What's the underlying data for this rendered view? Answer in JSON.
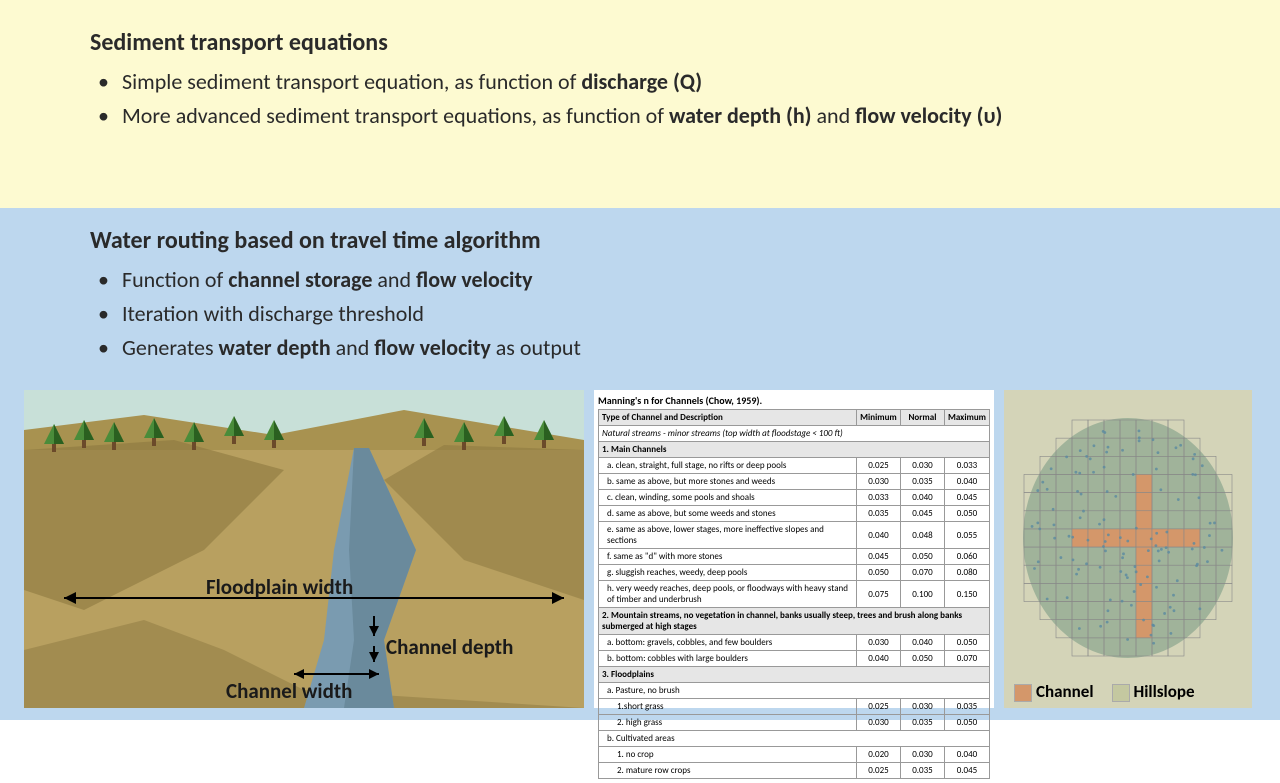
{
  "top": {
    "title": "Sediment transport equations",
    "bullets": [
      {
        "pre": "Simple sediment transport equation, as function of ",
        "bold1": "discharge (Q)",
        "post": ""
      },
      {
        "pre": "More advanced sediment transport equations, as function of ",
        "bold1": "water depth (h)",
        "mid": " and ",
        "bold2": "flow velocity (υ)"
      }
    ]
  },
  "bottom": {
    "title": "Water routing based on travel time algorithm",
    "bullets": [
      {
        "pre": "Function of ",
        "bold1": "channel storage",
        "mid": " and ",
        "bold2": "flow velocity"
      },
      {
        "pre": "Iteration with discharge threshold"
      },
      {
        "pre": "Generates ",
        "bold1": "water depth",
        "mid": " and ",
        "bold2": "flow velocity",
        "post": " as output"
      }
    ]
  },
  "panel1": {
    "label_floodplain": "Floodplain width",
    "label_channel_depth": "Channel depth",
    "label_channel_width": "Channel width",
    "colors": {
      "sky": "#c8e0d8",
      "ground_far": "#a89250",
      "ground": "#b8a060",
      "ground_dark": "#8c7840",
      "water": "#7a9bb0",
      "tree_green": "#4a8c3a",
      "tree_dark": "#2a6020"
    }
  },
  "panel2": {
    "title": "Manning's n for Channels (Chow, 1959).",
    "headers": [
      "Type of Channel and Description",
      "Minimum",
      "Normal",
      "Maximum"
    ],
    "natural_header": "Natural streams - minor streams (top width at floodstage < 100 ft)",
    "sections": [
      {
        "name": "1. Main Channels",
        "rows": [
          {
            "d": "a. clean, straight, full stage, no rifts or deep pools",
            "v": [
              0.025,
              0.03,
              0.033
            ]
          },
          {
            "d": "b. same as above, but more stones and weeds",
            "v": [
              0.03,
              0.035,
              0.04
            ]
          },
          {
            "d": "c. clean, winding, some pools and shoals",
            "v": [
              0.033,
              0.04,
              0.045
            ]
          },
          {
            "d": "d. same as above, but some weeds and stones",
            "v": [
              0.035,
              0.045,
              0.05
            ]
          },
          {
            "d": "e. same as above, lower stages, more ineffective slopes and sections",
            "v": [
              0.04,
              0.048,
              0.055
            ]
          },
          {
            "d": "f. same as \"d\" with more stones",
            "v": [
              0.045,
              0.05,
              0.06
            ]
          },
          {
            "d": "g. sluggish reaches, weedy, deep pools",
            "v": [
              0.05,
              0.07,
              0.08
            ]
          },
          {
            "d": "h. very weedy reaches, deep pools, or floodways with heavy stand of timber and underbrush",
            "v": [
              0.075,
              0.1,
              0.15
            ]
          }
        ]
      },
      {
        "name": "2. Mountain streams, no vegetation in channel, banks usually steep, trees and brush along banks submerged at high stages",
        "rows": [
          {
            "d": "a. bottom: gravels, cobbles, and few boulders",
            "v": [
              0.03,
              0.04,
              0.05
            ]
          },
          {
            "d": "b. bottom: cobbles with large boulders",
            "v": [
              0.04,
              0.05,
              0.07
            ]
          }
        ]
      },
      {
        "name": "3. Floodplains",
        "rows": [
          {
            "d": "a. Pasture, no brush",
            "v": null
          },
          {
            "d": "1.short grass",
            "v": [
              0.025,
              0.03,
              0.035
            ],
            "indent": true
          },
          {
            "d": "2. high grass",
            "v": [
              0.03,
              0.035,
              0.05
            ],
            "indent": true
          },
          {
            "d": "b. Cultivated areas",
            "v": null
          },
          {
            "d": "1. no crop",
            "v": [
              0.02,
              0.03,
              0.04
            ],
            "indent": true
          },
          {
            "d": "2. mature row crops",
            "v": [
              0.025,
              0.035,
              0.045
            ],
            "indent": true
          }
        ]
      }
    ]
  },
  "panel3": {
    "legend_channel": "Channel",
    "legend_hillslope": "Hillslope",
    "colors": {
      "bg": "#d4d4b8",
      "basin_fill": "#8fa890",
      "basin_fill_opacity": 0.75,
      "grid": "#888888",
      "channel": "#d4976a",
      "hillslope": "#c4c8a0",
      "scatter": "#5a8aa0"
    },
    "grid_size": 13
  }
}
